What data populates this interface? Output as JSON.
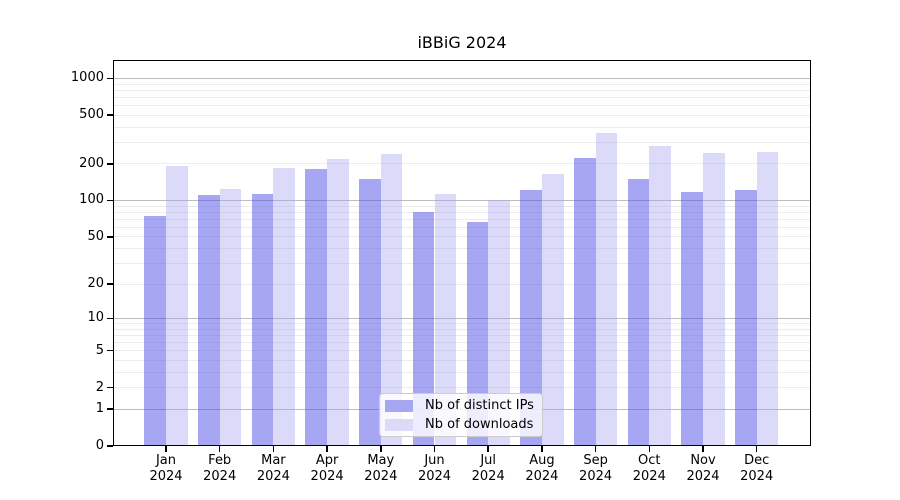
{
  "title": "iBBiG 2024",
  "chart_data": {
    "type": "bar",
    "title": "iBBiG 2024",
    "categories": [
      "Jan 2024",
      "Feb 2024",
      "Mar 2024",
      "Apr 2024",
      "May 2024",
      "Jun 2024",
      "Jul 2024",
      "Aug 2024",
      "Sep 2024",
      "Oct 2024",
      "Nov 2024",
      "Dec 2024"
    ],
    "month_labels": [
      "Jan",
      "Feb",
      "Mar",
      "Apr",
      "May",
      "Jun",
      "Jul",
      "Aug",
      "Sep",
      "Oct",
      "Nov",
      "Dec"
    ],
    "year_label": "2024",
    "series": [
      {
        "name": "Nb of distinct IPs",
        "color": "#a6a6f3",
        "fill_rgba": "rgba(77,77,230,0.5)",
        "values": [
          74,
          110,
          114,
          180,
          150,
          80,
          67,
          121,
          222,
          150,
          117,
          121
        ]
      },
      {
        "name": "Nb of downloads",
        "color": "#dbdbf9",
        "fill_rgba": "rgba(160,160,240,0.38)",
        "values": [
          192,
          125,
          185,
          221,
          243,
          114,
          100,
          164,
          357,
          278,
          246,
          250
        ]
      }
    ],
    "yscale": "log10(1+x)",
    "ylim": [
      0,
      1380
    ],
    "yticks": [
      0,
      1,
      2,
      5,
      10,
      20,
      50,
      100,
      200,
      500,
      1000
    ],
    "y_major_gridlines": [
      1,
      10,
      100,
      1000
    ],
    "y_minor_gridlines": [
      2,
      3,
      4,
      5,
      6,
      7,
      8,
      9,
      20,
      30,
      40,
      50,
      60,
      70,
      80,
      90,
      200,
      300,
      400,
      500,
      600,
      700,
      800,
      900
    ],
    "grid": "horizontal",
    "legend_position": "inside-bottom-center"
  },
  "colors": {
    "background": "#ffffff",
    "axis": "#000000",
    "grid_major": "#bdbdbd",
    "grid_minor": "#ececec",
    "bar_distinct_ips": "#a6a6f3",
    "bar_downloads": "#dbdbf9",
    "legend_bg": "rgba(255,255,255,0.8)",
    "legend_border": "#cccccc"
  }
}
